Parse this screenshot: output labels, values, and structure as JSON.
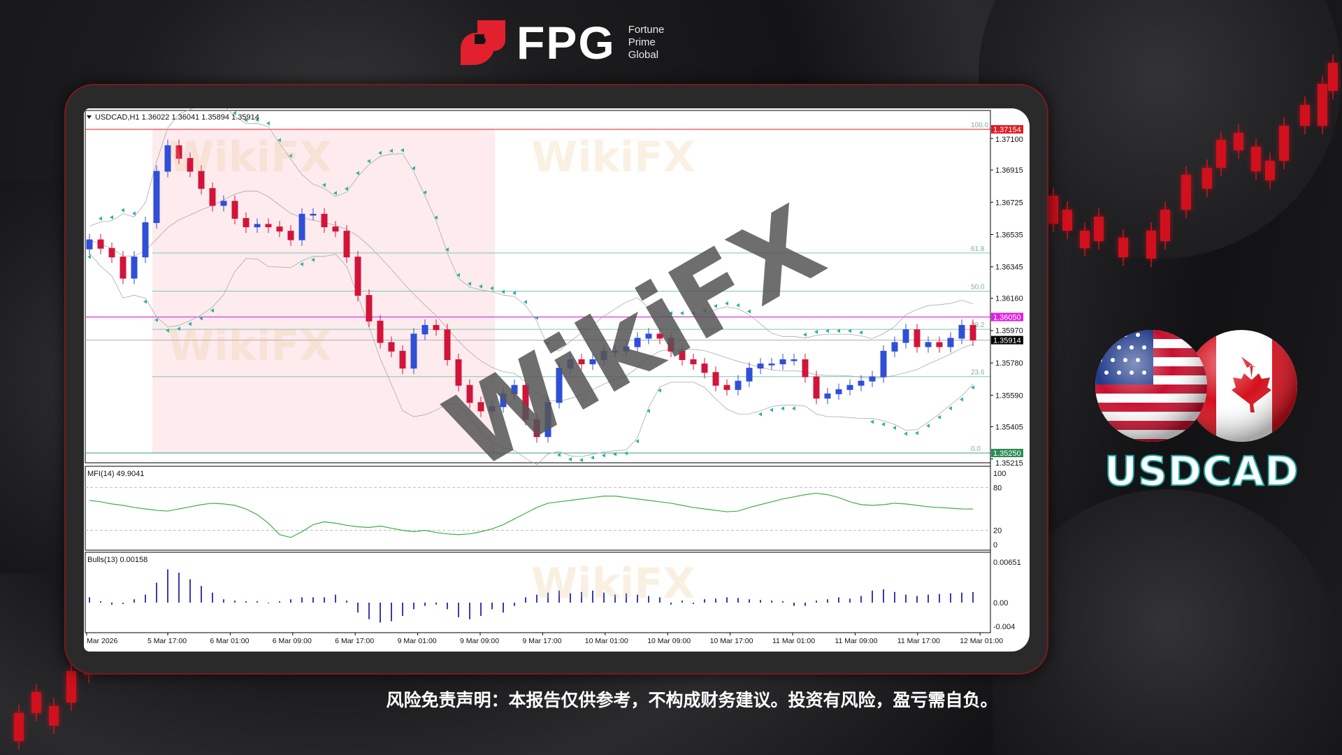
{
  "brand": {
    "name": "FPG",
    "tagline": [
      "Fortune",
      "Prime",
      "Global"
    ],
    "accent": "#e3202e"
  },
  "chart_header": "USDCAD,H1  1.36022 1.36041 1.35894 1.35914",
  "watermark": "WikiFX",
  "pair_label": "USDCAD",
  "disclaimer": "风险免责声明：本报告仅供参考，不构成财务建议。投资有风险，盈亏需自负。",
  "chart_data": [
    {
      "type": "candlestick",
      "symbol": "USDCAD",
      "timeframe": "H1",
      "ohlc_last": {
        "open": 1.36022,
        "high": 1.36041,
        "low": 1.35894,
        "close": 1.35914
      },
      "ylim": [
        1.35215,
        1.37154
      ],
      "y_ticks": [
        "1.37100",
        "1.36915",
        "1.36725",
        "1.36535",
        "1.36345",
        "1.36160",
        "1.35970",
        "1.35780",
        "1.35590",
        "1.35405",
        "1.35215"
      ],
      "price_tags": [
        {
          "value": "1.37154",
          "color": "#e01b24"
        },
        {
          "value": "1.36050",
          "color": "#e020e0"
        },
        {
          "value": "1.35914",
          "color": "#000000"
        },
        {
          "value": "1.35250",
          "color": "#2e8b57"
        }
      ],
      "fibonacci": {
        "high": 1.37154,
        "low": 1.3525,
        "levels": [
          "100.0",
          "61.8",
          "50.0",
          "38.2",
          "23.6",
          "0.0"
        ]
      },
      "horizontal_line": 1.3605,
      "x_ticks": [
        "Mar 2026",
        "5 Mar 17:00",
        "6 Mar 01:00",
        "6 Mar 09:00",
        "6 Mar 17:00",
        "9 Mar 01:00",
        "9 Mar 09:00",
        "9 Mar 17:00",
        "10 Mar 01:00",
        "10 Mar 09:00",
        "10 Mar 17:00",
        "11 Mar 01:00",
        "11 Mar 09:00",
        "11 Mar 17:00",
        "12 Mar 01:00"
      ],
      "up_color": "#2f4fd6",
      "down_color": "#d2143a",
      "first_open": 1.3645,
      "closes": [
        1.36504,
        1.36454,
        1.36403,
        1.36278,
        1.36403,
        1.36605,
        1.36907,
        1.37058,
        1.36983,
        1.36907,
        1.36806,
        1.36706,
        1.36731,
        1.3663,
        1.3658,
        1.36595,
        1.3658,
        1.36555,
        1.36504,
        1.36655,
        1.36655,
        1.3658,
        1.36555,
        1.36403,
        1.36177,
        1.36026,
        1.359,
        1.35849,
        1.35749,
        1.3595,
        1.36001,
        1.35975,
        1.35799,
        1.35648,
        1.35547,
        1.35497,
        1.35522,
        1.35598,
        1.35648,
        1.35447,
        1.35346,
        1.35547,
        1.35749,
        1.35799,
        1.35774,
        1.35799,
        1.35849,
        1.35849,
        1.35875,
        1.35925,
        1.3595,
        1.35925,
        1.35849,
        1.35799,
        1.35774,
        1.35724,
        1.35648,
        1.35623,
        1.35673,
        1.35749,
        1.35774,
        1.35774,
        1.35799,
        1.35799,
        1.35698,
        1.35572,
        1.35598,
        1.35623,
        1.35648,
        1.35673,
        1.35698,
        1.35849,
        1.359,
        1.35975,
        1.35875,
        1.359,
        1.35875,
        1.35925,
        1.36001,
        1.35914
      ]
    },
    {
      "type": "line",
      "title": "MFI(14) 49.9041",
      "ylim": [
        0,
        100
      ],
      "y_ticks": [
        "100",
        "80",
        "20",
        "0"
      ],
      "levels": [
        80,
        20
      ],
      "color": "#3cb043",
      "values": [
        62,
        60,
        57,
        55,
        52,
        50,
        48,
        47,
        50,
        53,
        56,
        58,
        57,
        55,
        50,
        42,
        30,
        14,
        10,
        18,
        28,
        32,
        30,
        27,
        25,
        24,
        26,
        23,
        20,
        18,
        20,
        17,
        15,
        14,
        15,
        18,
        22,
        28,
        36,
        44,
        52,
        58,
        60,
        62,
        64,
        66,
        68,
        68,
        66,
        64,
        62,
        60,
        58,
        55,
        52,
        50,
        48,
        46,
        47,
        52,
        56,
        60,
        64,
        67,
        70,
        72,
        70,
        66,
        60,
        56,
        55,
        56,
        58,
        57,
        55,
        53,
        52,
        51,
        50,
        49.9041
      ]
    },
    {
      "type": "bar",
      "title": "Bulls(13) 0.00158",
      "ylim": [
        -0.004,
        0.00651
      ],
      "y_ticks": [
        "0.00651",
        "0.00",
        "-0.004"
      ],
      "color": "#3a3ab0",
      "values": [
        0.0008,
        0.0002,
        -0.0003,
        -0.0002,
        0.0005,
        0.0012,
        0.003,
        0.005,
        0.0045,
        0.0035,
        0.0025,
        0.0015,
        0.0005,
        0.0003,
        0.0002,
        0.0002,
        -0.0001,
        0.0002,
        0.0005,
        0.0008,
        0.0008,
        0.0008,
        0.0012,
        0.0003,
        -0.0015,
        -0.0025,
        -0.003,
        -0.0028,
        -0.002,
        -0.001,
        -0.0005,
        -0.0003,
        -0.001,
        -0.0022,
        -0.0025,
        -0.002,
        -0.001,
        -0.0015,
        -0.0005,
        0.0008,
        0.0012,
        0.0015,
        0.0018,
        0.0014,
        0.0016,
        0.0018,
        0.0015,
        0.0012,
        0.0014,
        0.0012,
        0.001,
        0.0008,
        -0.0003,
        0.0003,
        -0.0002,
        0.0005,
        0.0006,
        0.0008,
        0.0007,
        0.0005,
        0.0004,
        0.0003,
        0.0002,
        -0.0005,
        -0.0005,
        0.0003,
        0.0005,
        0.0008,
        0.0006,
        0.001,
        0.0018,
        0.002,
        0.0016,
        0.0012,
        0.001,
        0.0012,
        0.0013,
        0.0014,
        0.0015,
        0.00158
      ]
    }
  ]
}
